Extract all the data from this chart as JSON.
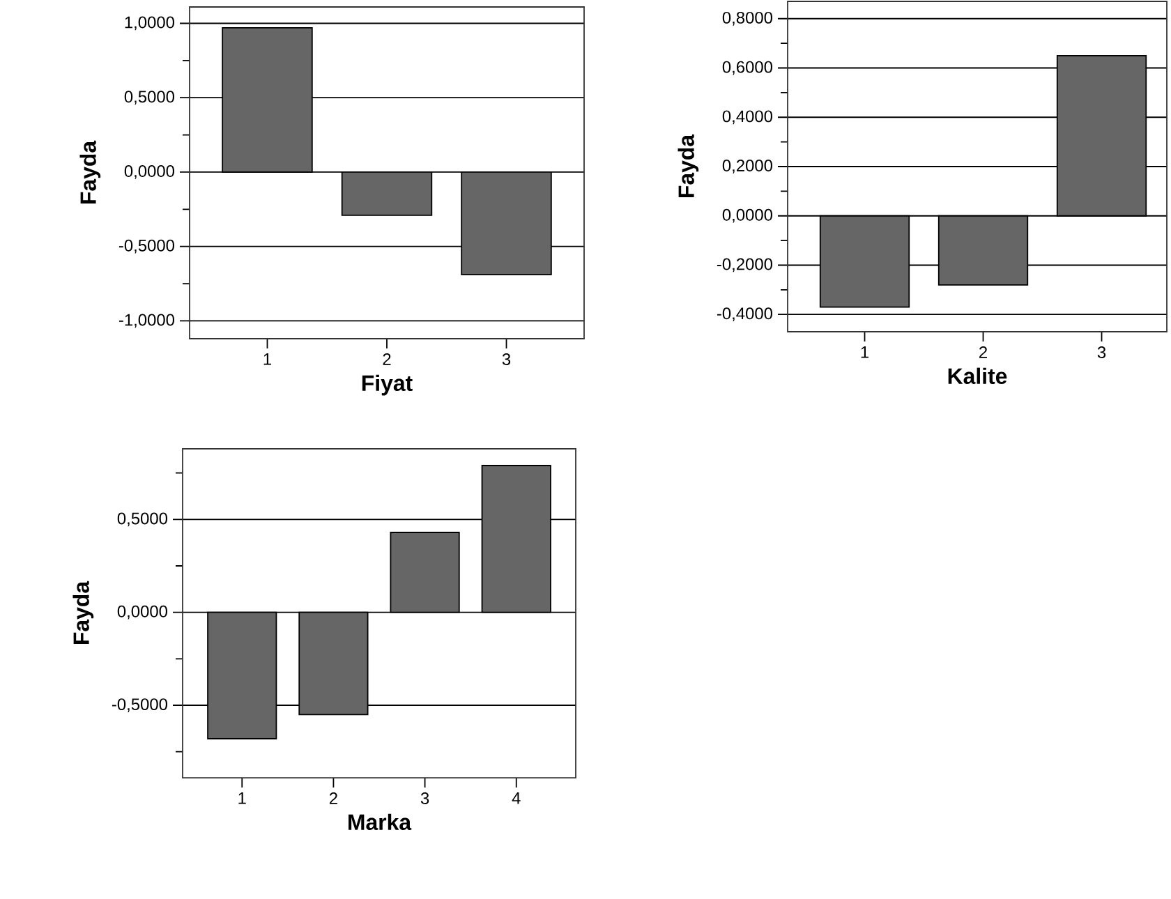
{
  "chart_data": [
    {
      "type": "bar",
      "xlabel": "Fiyat",
      "ylabel": "Fayda",
      "categories": [
        "1",
        "2",
        "3"
      ],
      "values": [
        0.97,
        -0.29,
        -0.69
      ],
      "color": "#666666",
      "ylim": [
        -1.12,
        1.11
      ],
      "grid": "y",
      "yticks": [
        {
          "value": -1,
          "label": "-1,0000"
        },
        {
          "value": -0.75,
          "label": null
        },
        {
          "value": -0.5,
          "label": "-0,5000"
        },
        {
          "value": -0.25,
          "label": null
        },
        {
          "value": 0,
          "label": "0,0000"
        },
        {
          "value": 0.25,
          "label": null
        },
        {
          "value": 0.5,
          "label": "0,5000"
        },
        {
          "value": 0.75,
          "label": null
        },
        {
          "value": 1,
          "label": "1,0000"
        }
      ]
    },
    {
      "type": "bar",
      "xlabel": "Kalite",
      "ylabel": "Fayda",
      "categories": [
        "1",
        "2",
        "3"
      ],
      "values": [
        -0.37,
        -0.28,
        0.65
      ],
      "color": "#666666",
      "ylim": [
        -0.47,
        0.87
      ],
      "grid": "y",
      "yticks": [
        {
          "value": -0.4,
          "label": "-0,4000"
        },
        {
          "value": -0.3,
          "label": null
        },
        {
          "value": -0.2,
          "label": "-0,2000"
        },
        {
          "value": -0.1,
          "label": null
        },
        {
          "value": 0,
          "label": "0,0000"
        },
        {
          "value": 0.1,
          "label": null
        },
        {
          "value": 0.2,
          "label": "0,2000"
        },
        {
          "value": 0.3,
          "label": null
        },
        {
          "value": 0.4,
          "label": "0,4000"
        },
        {
          "value": 0.5,
          "label": null
        },
        {
          "value": 0.6,
          "label": "0,6000"
        },
        {
          "value": 0.7,
          "label": null
        },
        {
          "value": 0.8,
          "label": "0,8000"
        }
      ]
    },
    {
      "type": "bar",
      "xlabel": "Marka",
      "ylabel": "Fayda",
      "categories": [
        "1",
        "2",
        "3",
        "4"
      ],
      "values": [
        -0.68,
        -0.55,
        0.43,
        0.79
      ],
      "color": "#666666",
      "ylim": [
        -0.89,
        0.88
      ],
      "grid": "y",
      "yticks": [
        {
          "value": -0.75,
          "label": null
        },
        {
          "value": -0.5,
          "label": "-0,5000"
        },
        {
          "value": -0.25,
          "label": null
        },
        {
          "value": 0,
          "label": "0,0000"
        },
        {
          "value": 0.25,
          "label": null
        },
        {
          "value": 0.5,
          "label": "0,5000"
        },
        {
          "value": 0.75,
          "label": null
        }
      ]
    }
  ]
}
